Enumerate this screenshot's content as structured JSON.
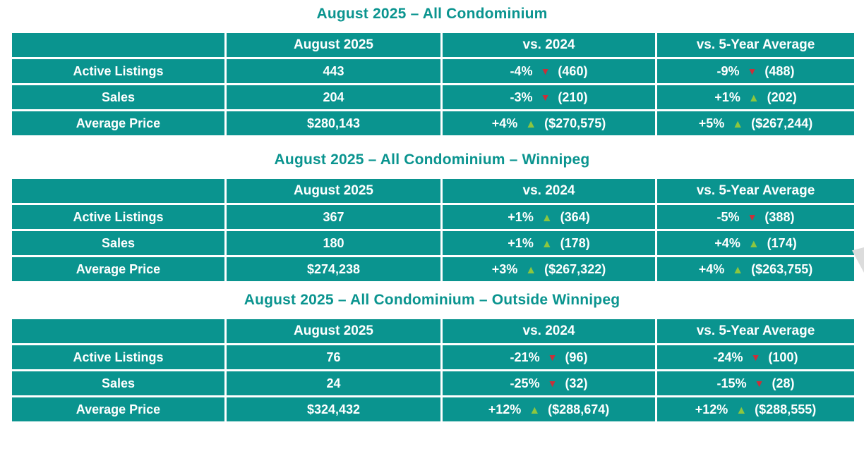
{
  "colors": {
    "teal": "#0a948f",
    "title": "#0a948f",
    "up": "#8dc63f",
    "down": "#c8303a",
    "grid": "#ffffff",
    "watermark": "#dcdcdc"
  },
  "icons": {
    "up_glyph": "▲",
    "down_glyph": "▼",
    "up_name": "trend-up-icon",
    "down_name": "trend-down-icon"
  },
  "tables": [
    {
      "title": "August 2025 – All Condominium",
      "columns": [
        "",
        "August 2025",
        "vs. 2024",
        "vs. 5-Year Average"
      ],
      "rows": [
        {
          "label": "Active Listings",
          "current": "443",
          "vs_2024": {
            "pct": "-4%",
            "dir": "down",
            "ref": "(460)"
          },
          "vs_5yr": {
            "pct": "-9%",
            "dir": "down",
            "ref": "(488)"
          }
        },
        {
          "label": "Sales",
          "current": "204",
          "vs_2024": {
            "pct": "-3%",
            "dir": "down",
            "ref": "(210)"
          },
          "vs_5yr": {
            "pct": "+1%",
            "dir": "up",
            "ref": "(202)"
          }
        },
        {
          "label": "Average Price",
          "current": "$280,143",
          "vs_2024": {
            "pct": "+4%",
            "dir": "up",
            "ref": "($270,575)"
          },
          "vs_5yr": {
            "pct": "+5%",
            "dir": "up",
            "ref": "($267,244)"
          }
        }
      ]
    },
    {
      "title": "August 2025 – All Condominium – Winnipeg",
      "columns": [
        "",
        "August 2025",
        "vs. 2024",
        "vs. 5-Year Average"
      ],
      "rows": [
        {
          "label": "Active Listings",
          "current": "367",
          "vs_2024": {
            "pct": "+1%",
            "dir": "up",
            "ref": "(364)"
          },
          "vs_5yr": {
            "pct": "-5%",
            "dir": "down",
            "ref": "(388)"
          }
        },
        {
          "label": "Sales",
          "current": "180",
          "vs_2024": {
            "pct": "+1%",
            "dir": "up",
            "ref": "(178)"
          },
          "vs_5yr": {
            "pct": "+4%",
            "dir": "up",
            "ref": "(174)"
          }
        },
        {
          "label": "Average Price",
          "current": "$274,238",
          "vs_2024": {
            "pct": "+3%",
            "dir": "up",
            "ref": "($267,322)"
          },
          "vs_5yr": {
            "pct": "+4%",
            "dir": "up",
            "ref": "($263,755)"
          }
        }
      ]
    },
    {
      "title": "August 2025 – All Condominium – Outside Winnipeg",
      "columns": [
        "",
        "August 2025",
        "vs. 2024",
        "vs. 5-Year Average"
      ],
      "rows": [
        {
          "label": "Active Listings",
          "current": "76",
          "vs_2024": {
            "pct": "-21%",
            "dir": "down",
            "ref": "(96)"
          },
          "vs_5yr": {
            "pct": "-24%",
            "dir": "down",
            "ref": "(100)"
          }
        },
        {
          "label": "Sales",
          "current": "24",
          "vs_2024": {
            "pct": "-25%",
            "dir": "down",
            "ref": "(32)"
          },
          "vs_5yr": {
            "pct": "-15%",
            "dir": "down",
            "ref": "(28)"
          }
        },
        {
          "label": "Average Price",
          "current": "$324,432",
          "vs_2024": {
            "pct": "+12%",
            "dir": "up",
            "ref": "($288,674)"
          },
          "vs_5yr": {
            "pct": "+12%",
            "dir": "up",
            "ref": "($288,555)"
          }
        }
      ]
    }
  ]
}
